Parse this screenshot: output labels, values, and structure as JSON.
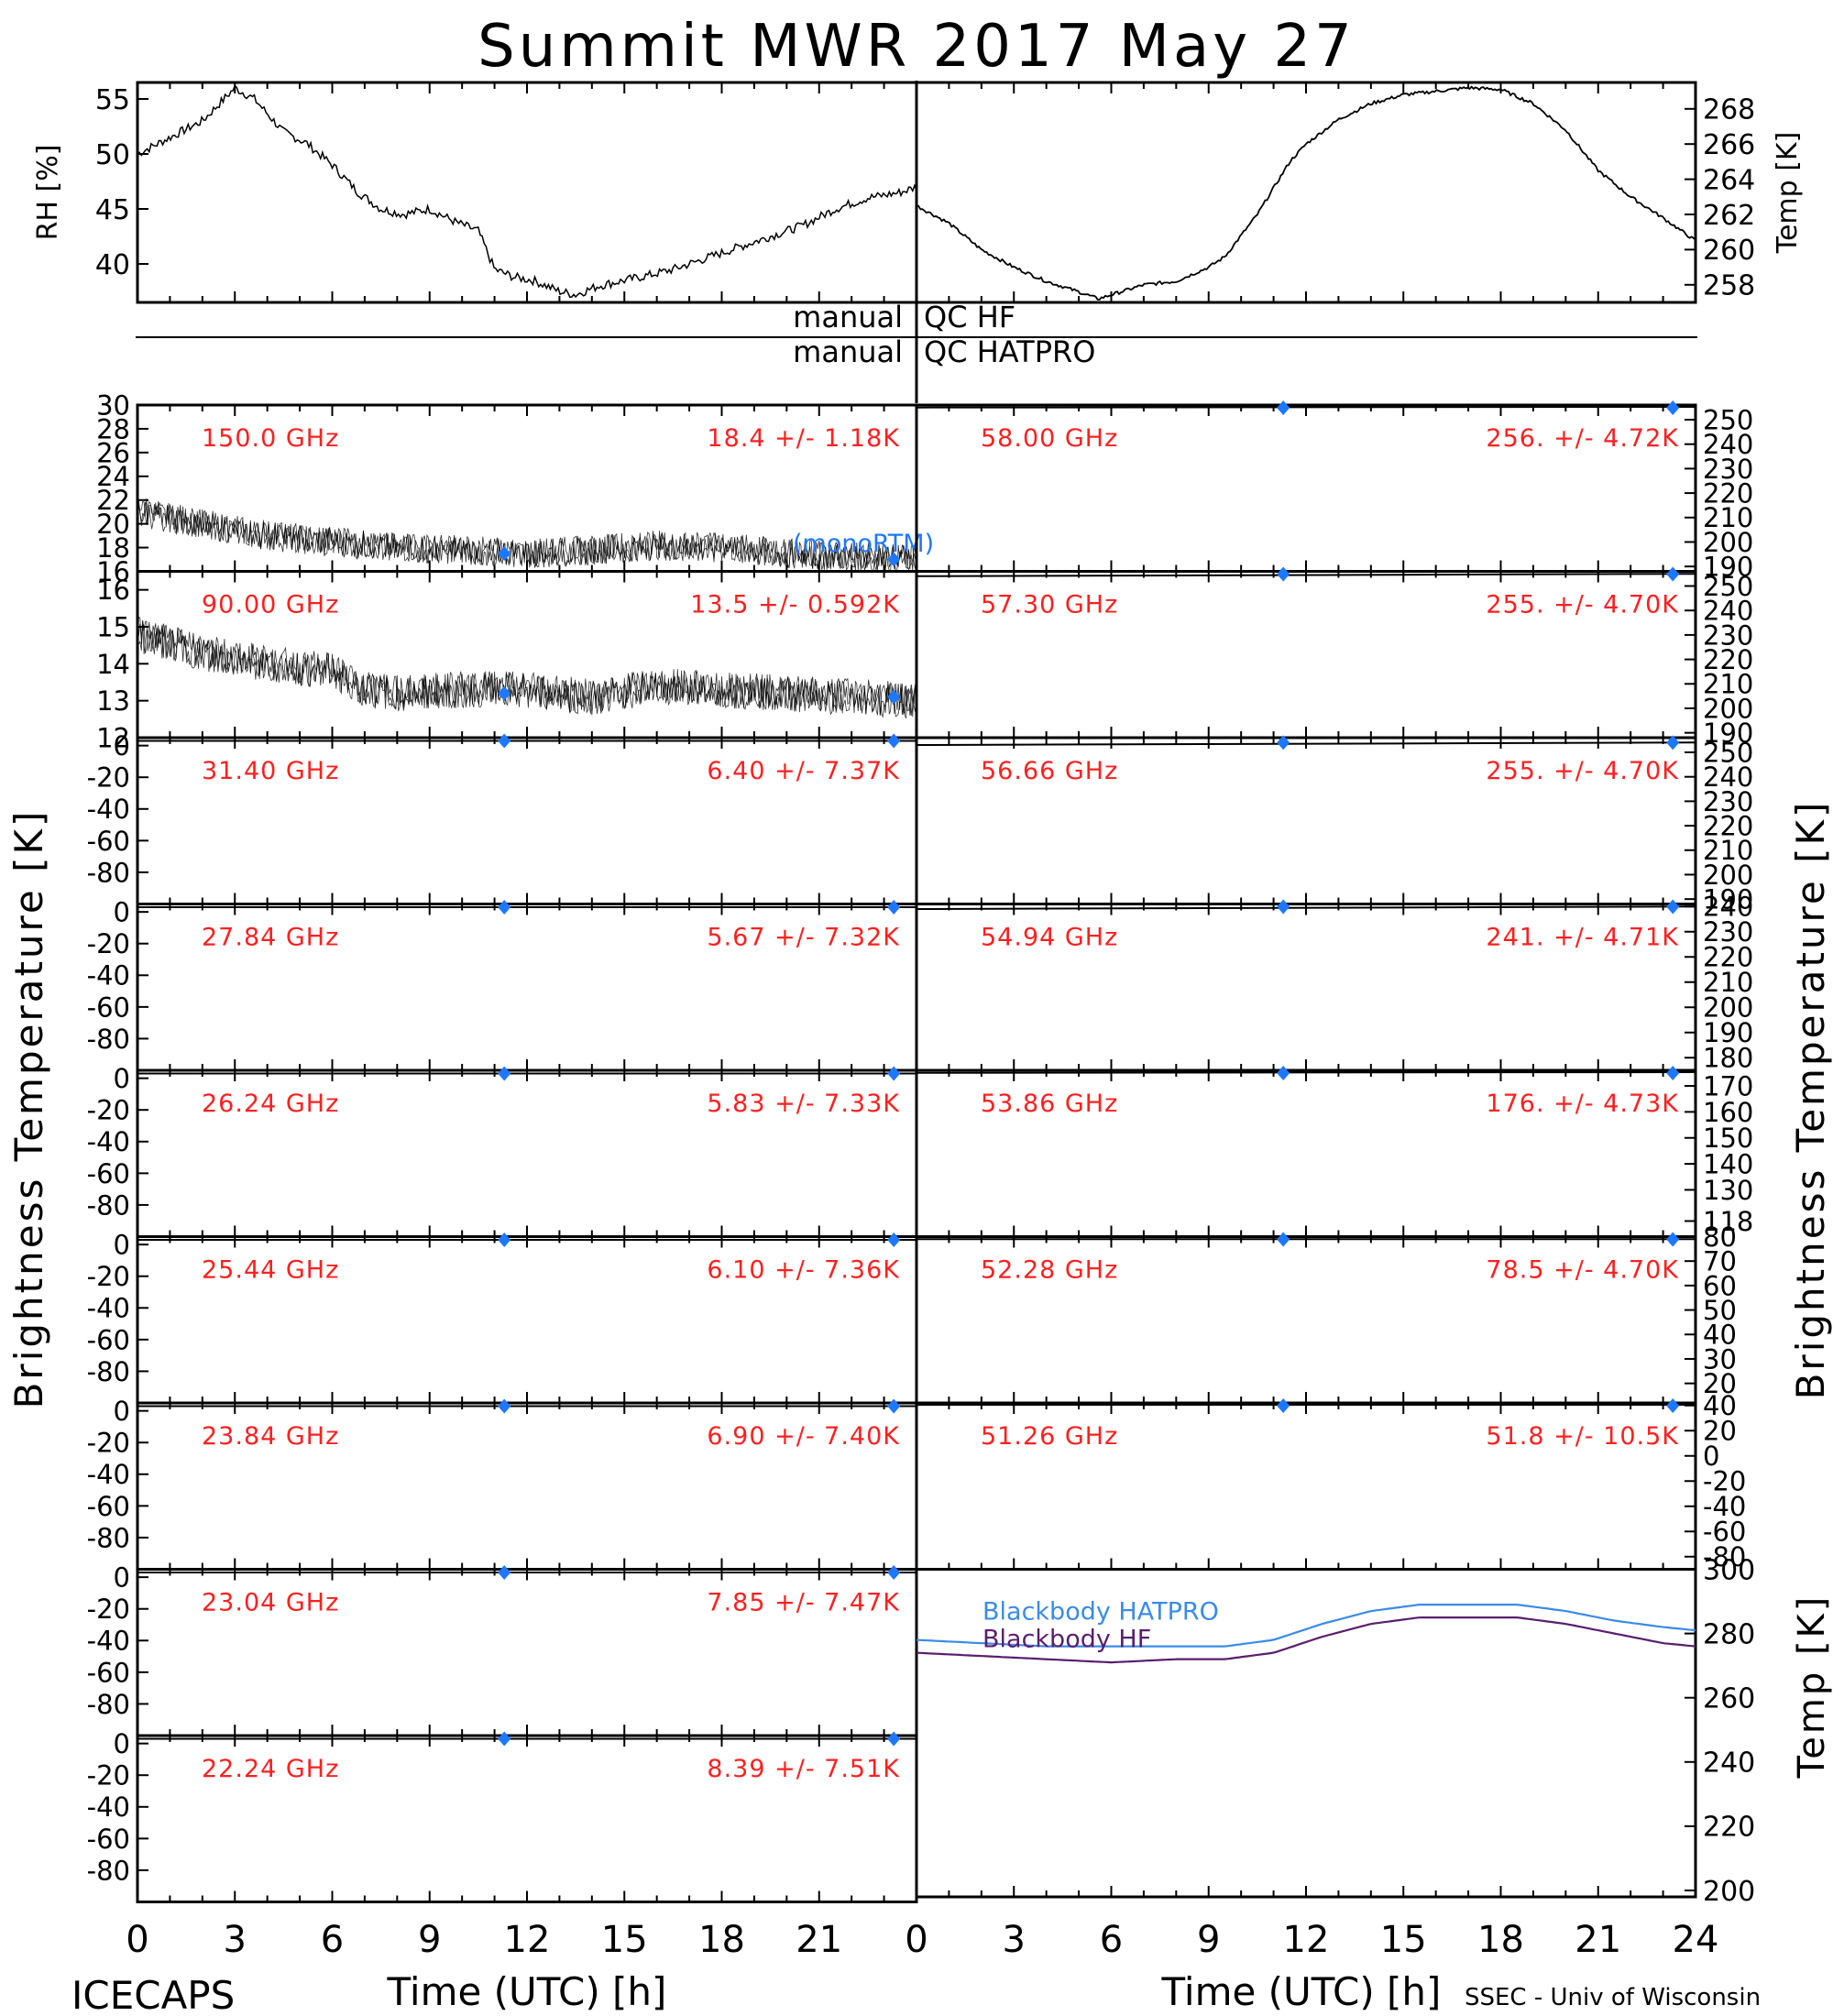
{
  "title": "Summit MWR 2017 May 27",
  "footer_left": "ICECAPS",
  "footer_right": "SSEC - Univ of Wisconsin",
  "xlabel": "Time (UTC) [h]",
  "left_ylabel": "Brightness Temperature [K]",
  "right_ylabel": "Brightness Temperature [K]",
  "qc": {
    "manual_label": "manual",
    "hf_label": "QC HF",
    "hatpro_label": "QC HATPRO"
  },
  "colors": {
    "annotation": "#ff2020",
    "marker": "#1e78ff",
    "blackbody_hatpro": "#3a8be8",
    "blackbody_hf": "#5a1e6e",
    "data": "#000000"
  },
  "chart_data": [
    {
      "id": "rh",
      "type": "line",
      "ylabel": "RH [%]",
      "xlim": [
        0,
        24
      ],
      "ylim": [
        36.5,
        56.5
      ],
      "yticks": [
        40,
        45,
        50,
        55
      ],
      "series": [
        {
          "x": [
            0,
            1,
            2,
            3,
            3.6,
            4.5,
            5.2,
            6,
            6.8,
            7.5,
            8.2,
            9,
            9.8,
            10.5,
            11,
            11.6,
            12.2,
            13,
            13.5,
            14.2,
            15,
            15.8,
            16.5,
            17.5,
            18.5,
            19.5,
            20.5,
            21.5,
            22.5,
            23.5,
            24
          ],
          "values": [
            50,
            51.5,
            53,
            56,
            55,
            52,
            51,
            49,
            46.5,
            45,
            44.5,
            45,
            43.8,
            43,
            39.5,
            38.8,
            38.5,
            37.5,
            37.2,
            38,
            38.5,
            39,
            39.5,
            40.5,
            41.5,
            42.5,
            43.5,
            45,
            46,
            46.5,
            47
          ]
        }
      ]
    },
    {
      "id": "temp",
      "type": "line",
      "ylabel": "Temp [K]",
      "xlim": [
        0,
        24
      ],
      "ylim": [
        257,
        269.5
      ],
      "yticks": [
        258,
        260,
        262,
        264,
        266,
        268
      ],
      "series": [
        {
          "x": [
            0,
            1,
            2,
            3,
            4,
            5,
            5.6,
            6.3,
            7,
            8,
            9,
            9.5,
            10,
            10.5,
            11,
            11.5,
            12,
            13,
            14,
            15,
            16,
            17,
            18,
            19,
            20,
            21,
            22,
            23,
            24
          ],
          "values": [
            262.5,
            261.5,
            260,
            259,
            258.2,
            257.6,
            257.2,
            257.6,
            258,
            258.2,
            259,
            259.6,
            260.8,
            262,
            263.5,
            265,
            266,
            267.4,
            268.3,
            268.8,
            269,
            269.2,
            269.1,
            268.3,
            266.8,
            264.5,
            263,
            261.8,
            260.5
          ]
        }
      ]
    },
    {
      "id": "ch150",
      "type": "line",
      "freq_label": "150.0 GHz",
      "stat_label": "18.4 +/-  1.18K",
      "ylim": [
        16,
        30
      ],
      "yticks": [
        16,
        18,
        20,
        22,
        24,
        26,
        28,
        30
      ],
      "x": [
        0,
        2,
        4,
        6,
        8,
        10,
        12,
        14,
        16,
        18,
        20,
        22,
        24
      ],
      "values": [
        21,
        20,
        19,
        18.5,
        18,
        17.8,
        17.5,
        17.8,
        18.2,
        18,
        17.5,
        17.2,
        17
      ],
      "markers": [
        {
          "x": 11.3,
          "y": 17.5
        },
        {
          "x": 23.3,
          "y": 17
        }
      ],
      "extra_label": "monoRTM)",
      "extra_label_prefix": "("
    },
    {
      "id": "ch58",
      "type": "line",
      "freq_label": "58.00 GHz",
      "stat_label": "256. +/- 4.72K",
      "ylim": [
        188,
        256
      ],
      "yticks": [
        190,
        200,
        210,
        220,
        230,
        240,
        250
      ],
      "x": [
        0,
        24
      ],
      "values": [
        255,
        256
      ],
      "markers": [
        {
          "x": 11.3,
          "y": 256
        },
        {
          "x": 23.3,
          "y": 256
        }
      ]
    },
    {
      "id": "ch90",
      "type": "line",
      "freq_label": "90.00 GHz",
      "stat_label": "13.5 +/- 0.592K",
      "ylim": [
        12,
        16.5
      ],
      "yticks": [
        12,
        13,
        14,
        15,
        16
      ],
      "x": [
        0,
        2,
        4,
        6,
        7,
        8,
        10,
        12,
        14,
        16,
        18,
        20,
        22,
        24
      ],
      "values": [
        14.8,
        14.3,
        14,
        13.8,
        13.3,
        13.2,
        13.3,
        13.3,
        13.1,
        13.4,
        13.3,
        13.2,
        13.1,
        13
      ],
      "markers": [
        {
          "x": 11.3,
          "y": 13.2
        },
        {
          "x": 23.3,
          "y": 13.1
        }
      ]
    },
    {
      "id": "ch5730",
      "type": "line",
      "freq_label": "57.30 GHz",
      "stat_label": "255. +/- 4.70K",
      "ylim": [
        188,
        256
      ],
      "yticks": [
        190,
        200,
        210,
        220,
        230,
        240,
        250
      ],
      "x": [
        0,
        24
      ],
      "values": [
        254,
        255
      ],
      "markers": [
        {
          "x": 11.3,
          "y": 255
        },
        {
          "x": 23.3,
          "y": 255
        }
      ]
    },
    {
      "id": "ch3140",
      "type": "line",
      "freq_label": "31.40 GHz",
      "stat_label": "6.40 +/- 7.37K",
      "ylim": [
        -100,
        5
      ],
      "yticks": [
        0,
        -20,
        -40,
        -60,
        -80
      ],
      "x": [
        0,
        24
      ],
      "values": [
        3,
        3
      ],
      "markers": [
        {
          "x": 11.3,
          "y": 3
        },
        {
          "x": 23.3,
          "y": 3
        }
      ]
    },
    {
      "id": "ch5666",
      "type": "line",
      "freq_label": "56.66 GHz",
      "stat_label": "255. +/- 4.70K",
      "ylim": [
        188,
        256
      ],
      "yticks": [
        190,
        200,
        210,
        220,
        230,
        240,
        250
      ],
      "x": [
        0,
        24
      ],
      "values": [
        253,
        254
      ],
      "markers": [
        {
          "x": 11.3,
          "y": 254
        },
        {
          "x": 23.3,
          "y": 254
        }
      ]
    },
    {
      "id": "ch2784",
      "type": "line",
      "freq_label": "27.84 GHz",
      "stat_label": "5.67 +/- 7.32K",
      "ylim": [
        -100,
        5
      ],
      "yticks": [
        0,
        -20,
        -40,
        -60,
        -80
      ],
      "x": [
        0,
        24
      ],
      "values": [
        3,
        3
      ],
      "markers": [
        {
          "x": 11.3,
          "y": 3
        },
        {
          "x": 23.3,
          "y": 3
        }
      ]
    },
    {
      "id": "ch5494",
      "type": "line",
      "freq_label": "54.94 GHz",
      "stat_label": "241. +/- 4.71K",
      "ylim": [
        175,
        241
      ],
      "yticks": [
        180,
        190,
        200,
        210,
        220,
        230,
        240
      ],
      "x": [
        0,
        24
      ],
      "values": [
        239,
        240
      ],
      "markers": [
        {
          "x": 11.3,
          "y": 240
        },
        {
          "x": 23.3,
          "y": 240
        }
      ]
    },
    {
      "id": "ch2624",
      "type": "line",
      "freq_label": "26.24 GHz",
      "stat_label": "5.83 +/- 7.33K",
      "ylim": [
        -100,
        5
      ],
      "yticks": [
        0,
        -20,
        -40,
        -60,
        -80
      ],
      "x": [
        0,
        24
      ],
      "values": [
        3,
        3
      ],
      "markers": [
        {
          "x": 11.3,
          "y": 3
        },
        {
          "x": 23.3,
          "y": 3
        }
      ]
    },
    {
      "id": "ch5386",
      "type": "line",
      "freq_label": "53.86 GHz",
      "stat_label": "176. +/- 4.73K",
      "ylim": [
        112,
        176
      ],
      "yticks": [
        118,
        130,
        140,
        150,
        160,
        170
      ],
      "x": [
        0,
        24
      ],
      "values": [
        175,
        176
      ],
      "markers": [
        {
          "x": 11.3,
          "y": 176
        },
        {
          "x": 23.3,
          "y": 176
        }
      ]
    },
    {
      "id": "ch2544",
      "type": "line",
      "freq_label": "25.44 GHz",
      "stat_label": "6.10 +/- 7.36K",
      "ylim": [
        -100,
        5
      ],
      "yticks": [
        0,
        -20,
        -40,
        -60,
        -80
      ],
      "x": [
        0,
        24
      ],
      "values": [
        3,
        3
      ],
      "markers": [
        {
          "x": 11.3,
          "y": 3
        },
        {
          "x": 23.3,
          "y": 3
        }
      ]
    },
    {
      "id": "ch5228",
      "type": "line",
      "freq_label": "52.28 GHz",
      "stat_label": "78.5 +/- 4.70K",
      "ylim": [
        12,
        80
      ],
      "yticks": [
        20,
        30,
        40,
        50,
        60,
        70,
        80
      ],
      "x": [
        0,
        24
      ],
      "values": [
        79,
        79
      ],
      "markers": [
        {
          "x": 11.3,
          "y": 79
        },
        {
          "x": 23.3,
          "y": 79
        }
      ]
    },
    {
      "id": "ch2384",
      "type": "line",
      "freq_label": "23.84 GHz",
      "stat_label": "6.90 +/- 7.40K",
      "ylim": [
        -100,
        5
      ],
      "yticks": [
        0,
        -20,
        -40,
        -60,
        -80
      ],
      "x": [
        0,
        24
      ],
      "values": [
        3,
        3
      ],
      "markers": [
        {
          "x": 11.3,
          "y": 3
        },
        {
          "x": 23.3,
          "y": 3
        }
      ]
    },
    {
      "id": "ch5126",
      "type": "line",
      "freq_label": "51.26 GHz",
      "stat_label": "51.8 +/- 10.5K",
      "ylim": [
        -90,
        42
      ],
      "yticks": [
        40,
        20,
        0,
        -20,
        -40,
        -60,
        -80
      ],
      "x": [
        0,
        24
      ],
      "values": [
        41,
        41
      ],
      "markers": [
        {
          "x": 11.3,
          "y": 41
        },
        {
          "x": 23.3,
          "y": 41
        }
      ]
    },
    {
      "id": "ch2304",
      "type": "line",
      "freq_label": "23.04 GHz",
      "stat_label": "7.85 +/- 7.47K",
      "ylim": [
        -100,
        5
      ],
      "yticks": [
        0,
        -20,
        -40,
        -60,
        -80
      ],
      "x": [
        0,
        24
      ],
      "values": [
        3,
        3
      ],
      "markers": [
        {
          "x": 11.3,
          "y": 3
        },
        {
          "x": 23.3,
          "y": 3
        }
      ]
    },
    {
      "id": "ch2224",
      "type": "line",
      "freq_label": "22.24 GHz",
      "stat_label": "8.39 +/- 7.51K",
      "ylim": [
        -100,
        5
      ],
      "yticks": [
        0,
        -20,
        -40,
        -60,
        -80
      ],
      "x": [
        0,
        24
      ],
      "values": [
        3,
        3
      ],
      "markers": [
        {
          "x": 11.3,
          "y": 3
        },
        {
          "x": 23.3,
          "y": 3
        }
      ]
    },
    {
      "id": "blackbody",
      "type": "line",
      "ylabel": "Temp [K]",
      "ylim": [
        198,
        300
      ],
      "yticks": [
        200,
        220,
        240,
        260,
        280,
        300
      ],
      "x": [
        0,
        2,
        4,
        6,
        8,
        9.5,
        11,
        12.5,
        14,
        15.5,
        17,
        18.5,
        20,
        21.5,
        23,
        24
      ],
      "series": [
        {
          "name": "Blackbody HATPRO",
          "values": [
            278,
            277,
            276,
            276,
            276,
            276,
            278,
            283,
            287,
            289,
            289,
            289,
            287,
            284,
            282,
            281
          ]
        },
        {
          "name": "Blackbody HF",
          "values": [
            274,
            273,
            272,
            271,
            272,
            272,
            274,
            279,
            283,
            285,
            285,
            285,
            283,
            280,
            277,
            276
          ]
        }
      ]
    }
  ],
  "x_ticks": {
    "left": [
      "0",
      "3",
      "6",
      "9",
      "12",
      "15",
      "18",
      "21"
    ],
    "right": [
      "0",
      "3",
      "6",
      "9",
      "12",
      "15",
      "18",
      "21",
      "24"
    ]
  }
}
